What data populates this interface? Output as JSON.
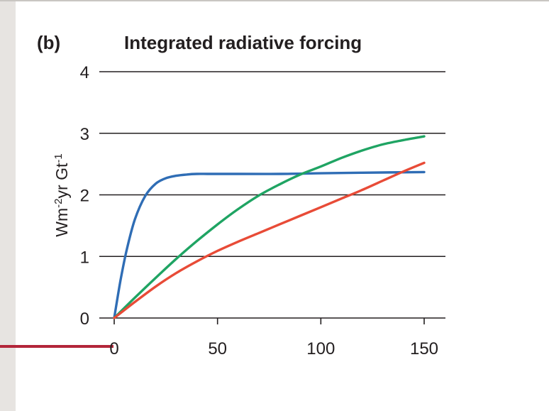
{
  "chart_data": {
    "type": "line",
    "panel_label": "(b)",
    "title": "Integrated radiative forcing",
    "xlabel": "",
    "ylabel": "Wm-2yr Gt-1",
    "xlim": [
      0,
      150
    ],
    "ylim": [
      0,
      4
    ],
    "xticks": [
      "0",
      "50",
      "100",
      "150"
    ],
    "yticks": [
      "0",
      "1",
      "2",
      "3",
      "4"
    ],
    "grid": "horizontal",
    "series": [
      {
        "color": "#2f6db5",
        "x": [
          0,
          3,
          6,
          10,
          15,
          20,
          25,
          30,
          35,
          40,
          45,
          50,
          60,
          80,
          100,
          120,
          150
        ],
        "y": [
          0,
          0.6,
          1.1,
          1.6,
          1.98,
          2.18,
          2.27,
          2.31,
          2.33,
          2.34,
          2.34,
          2.34,
          2.34,
          2.34,
          2.35,
          2.36,
          2.37
        ]
      },
      {
        "color": "#1fa463",
        "x": [
          0,
          10,
          20,
          30,
          40,
          50,
          60,
          70,
          80,
          90,
          100,
          110,
          120,
          130,
          140,
          150
        ],
        "y": [
          0,
          0.33,
          0.65,
          0.96,
          1.25,
          1.52,
          1.77,
          1.99,
          2.17,
          2.33,
          2.46,
          2.6,
          2.72,
          2.82,
          2.89,
          2.95
        ]
      },
      {
        "color": "#e84b37",
        "x": [
          0,
          10,
          20,
          30,
          40,
          50,
          60,
          70,
          80,
          90,
          100,
          110,
          120,
          130,
          140,
          150
        ],
        "y": [
          0,
          0.26,
          0.51,
          0.73,
          0.92,
          1.09,
          1.24,
          1.38,
          1.52,
          1.66,
          1.8,
          1.94,
          2.08,
          2.23,
          2.38,
          2.52
        ]
      }
    ]
  }
}
